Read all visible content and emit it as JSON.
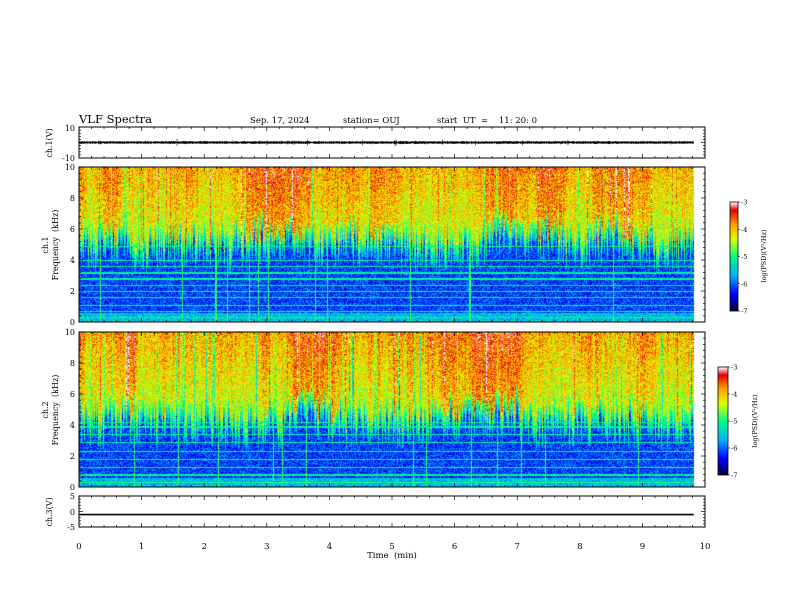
{
  "header": {
    "title": "VLF Spectra",
    "date": "Sep. 17, 2024",
    "station": "station= OUJ",
    "start": "start  UT  =    11: 20: 0"
  },
  "chart_data": [
    {
      "type": "line",
      "panel": "ch1-waveform",
      "ylabel": "ch.1(V)",
      "ylim": [
        -10,
        10
      ],
      "yticks": [
        "10",
        "-10"
      ],
      "xlim": [
        0,
        10
      ],
      "data_extent_min": [
        0,
        9.82
      ],
      "baseline_v": 0,
      "typical_amplitude_v": 1.0,
      "spike_amplitude_v": 2.5,
      "color": "#000000"
    },
    {
      "type": "heatmap",
      "panel": "ch1-spectrogram",
      "ylabel_1": "ch.1",
      "ylabel_2": "Frequency  (kHz)",
      "ylim": [
        0,
        10
      ],
      "yticks": [
        "0",
        "2",
        "4",
        "6",
        "8",
        "10"
      ],
      "xlim": [
        0,
        10
      ],
      "data_extent_min": [
        0,
        9.82
      ],
      "colorbar": {
        "label": "log(PSD)(V²/Hz)",
        "range": [
          -7,
          -3
        ],
        "ticks": [
          "-3",
          "-4",
          "-5",
          "-6",
          "-7"
        ]
      },
      "noise_floor_top_khz": 5.0,
      "line_bands_khz": [
        0.3,
        0.7,
        1.1,
        1.6,
        2.0,
        2.4,
        2.8,
        3.2,
        3.6,
        4.0,
        4.9
      ]
    },
    {
      "type": "heatmap",
      "panel": "ch2-spectrogram",
      "ylabel_1": "ch.2",
      "ylabel_2": "Frequency  (kHz)",
      "ylim": [
        0,
        10
      ],
      "yticks": [
        "0",
        "2",
        "4",
        "6",
        "8",
        "10"
      ],
      "xlim": [
        0,
        10
      ],
      "data_extent_min": [
        0,
        9.82
      ],
      "colorbar": {
        "label": "log(PSD)(V²/Hz)",
        "range": [
          -7,
          -3
        ],
        "ticks": [
          "-3",
          "-4",
          "-5",
          "-6",
          "-7"
        ]
      },
      "noise_floor_top_khz": 4.2,
      "line_bands_khz": [
        0.3,
        0.8,
        1.3,
        1.8,
        2.3,
        2.9,
        3.4,
        3.9,
        4.2
      ]
    },
    {
      "type": "line",
      "panel": "ch3-waveform",
      "ylabel": "ch.3(V)",
      "ylim": [
        -5,
        5
      ],
      "yticks": [
        "5",
        "0",
        "-5"
      ],
      "xlim": [
        0,
        10
      ],
      "xlabel": "Time  (min)",
      "xticks": [
        "0",
        "1",
        "2",
        "3",
        "4",
        "5",
        "6",
        "7",
        "8",
        "9",
        "10"
      ],
      "data_extent_min": [
        0,
        9.82
      ],
      "constant_value_v": -1,
      "color": "#000000"
    }
  ],
  "colors": {
    "axis": "#000000",
    "colormap": [
      "#000040",
      "#0000ff",
      "#00b0ff",
      "#00ff80",
      "#e0ff00",
      "#ffa000",
      "#e00000",
      "#ffffff"
    ]
  }
}
